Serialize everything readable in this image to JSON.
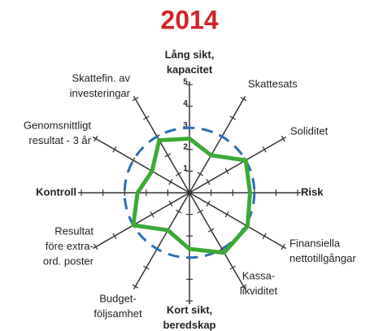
{
  "chart_data": {
    "type": "radar",
    "title": "2014",
    "categories": [
      [
        "Lång sikt,",
        "kapacitet"
      ],
      [
        "Skattesats"
      ],
      [
        "Soliditet"
      ],
      [
        "Risk"
      ],
      [
        "Finansiella",
        "nettotillgångar"
      ],
      [
        "Kassa-",
        "likviditet"
      ],
      [
        "Kort sikt,",
        "beredskap"
      ],
      [
        "Budget-",
        "följsamhet"
      ],
      [
        "Resultat",
        "före extra-",
        "ord. poster"
      ],
      [
        "Kontroll"
      ],
      [
        "Genomsnittligt",
        "resultat - 3 år"
      ],
      [
        "Skattefin. av",
        "investeringar"
      ]
    ],
    "values": [
      2.5,
      2.0,
      3.0,
      2.8,
      3.1,
      3.2,
      2.6,
      2.0,
      3.0,
      2.4,
      2.0,
      2.8
    ],
    "color": "#3aaa35",
    "circle_value": 3,
    "circle_color": "#2a6db5",
    "rlim": [
      0,
      5
    ],
    "rticks": [
      1,
      2,
      3,
      4,
      5
    ]
  }
}
